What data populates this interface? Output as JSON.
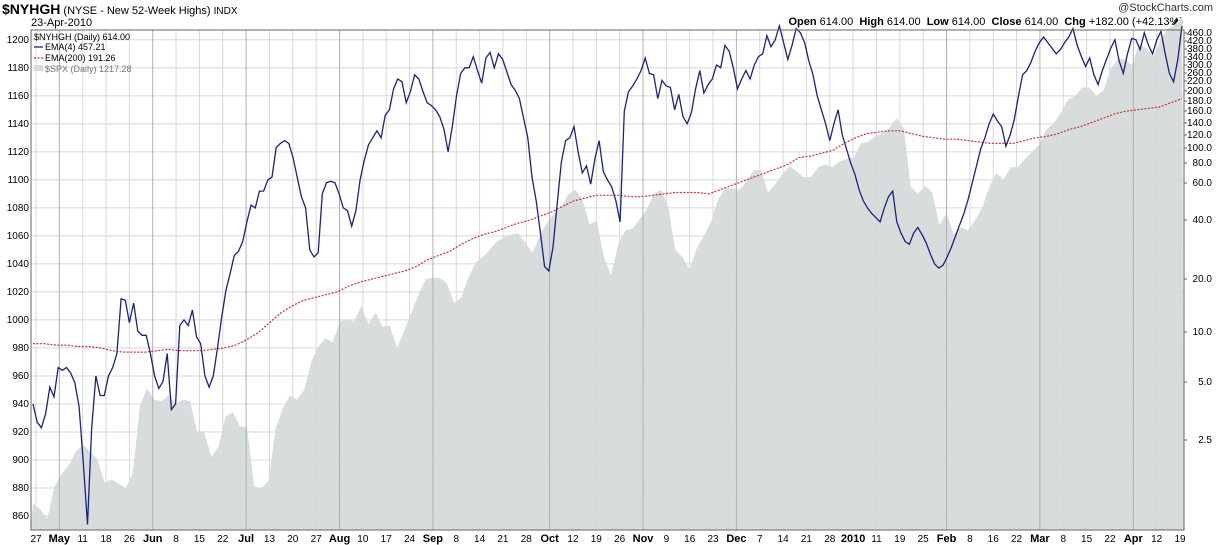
{
  "header": {
    "symbol": "$NYHGH",
    "description": "(NYSE - New 52-Week Highs)",
    "exchange": "INDX",
    "date": "23-Apr-2010",
    "watermark": "@StockCharts.com",
    "ohlc": {
      "open_label": "Open",
      "open": "614.00",
      "high_label": "High",
      "high": "614.00",
      "low_label": "Low",
      "low": "614.00",
      "close_label": "Close",
      "close": "614.00",
      "chg_label": "Chg",
      "chg": "+182.00 (+42.13%)"
    }
  },
  "legend": {
    "main": "$NYHGH (Daily) 614.00",
    "ema4": "EMA(4) 457.21",
    "ema200": "EMA(200) 191.26",
    "spx": "$SPX (Daily) 1217.28"
  },
  "colors": {
    "ema4": "#1a237e",
    "ema200": "#d32f2f",
    "spx_fill": "#d7dcdc",
    "grid": "#d8d8d8"
  },
  "chart_data": {
    "type": "line",
    "x_labels": [
      "27",
      "May",
      "11",
      "18",
      "26",
      "Jun",
      "8",
      "15",
      "22",
      "Jul",
      "13",
      "20",
      "27",
      "Aug",
      "10",
      "17",
      "24",
      "Sep",
      "8",
      "14",
      "21",
      "28",
      "Oct",
      "12",
      "19",
      "26",
      "Nov",
      "9",
      "16",
      "23",
      "Dec",
      "7",
      "14",
      "21",
      "28",
      "2010",
      "11",
      "19",
      "25",
      "Feb",
      "8",
      "16",
      "22",
      "Mar",
      "8",
      "15",
      "22",
      "Apr",
      "12",
      "19"
    ],
    "y_left_ticks": [
      860,
      880,
      900,
      920,
      940,
      960,
      980,
      1000,
      1020,
      1040,
      1060,
      1080,
      1100,
      1120,
      1140,
      1160,
      1180,
      1200
    ],
    "y_right_ticks": [
      "460.0",
      "420.0",
      "380.0",
      "340.0",
      "300.0",
      "260.0",
      "220.0",
      "200.0",
      "180.0",
      "160.0",
      "140.0",
      "120.0",
      "100.0",
      "80.0",
      "60.0",
      "40.0",
      "20.0",
      "10.0",
      "5.0",
      "2.5"
    ],
    "y_left_range": [
      850,
      1207
    ],
    "y_right_scale": "log",
    "series": [
      {
        "name": "$SPX (Daily) 1217.28",
        "kind": "area",
        "values": [
          869,
          865,
          858,
          881,
          890,
          896,
          906,
          911,
          906,
          901,
          884,
          886,
          883,
          880,
          891,
          939,
          951,
          943,
          942,
          946,
          940,
          943,
          942,
          920,
          920,
          902,
          910,
          931,
          934,
          924,
          923,
          881,
          880,
          885,
          922,
          937,
          946,
          943,
          950,
          970,
          981,
          987,
          984,
          999,
          1000,
          999,
          1010,
          997,
          1005,
          995,
          996,
          980,
          992,
          1005,
          1018,
          1029,
          1030,
          1030,
          1026,
          1012,
          1016,
          1030,
          1041,
          1045,
          1050,
          1056,
          1059,
          1061,
          1062,
          1055,
          1048,
          1060,
          1069,
          1076,
          1080,
          1090,
          1093,
          1086,
          1068,
          1071,
          1045,
          1032,
          1054,
          1064,
          1065,
          1072,
          1079,
          1090,
          1093,
          1081,
          1050,
          1045,
          1036,
          1051,
          1060,
          1070,
          1086,
          1094,
          1094,
          1093,
          1099,
          1107,
          1107,
          1091,
          1097,
          1104,
          1110,
          1106,
          1102,
          1102,
          1109,
          1111,
          1109,
          1113,
          1115,
          1116,
          1126,
          1127,
          1131,
          1133,
          1137,
          1144,
          1137,
          1095,
          1090,
          1096,
          1091,
          1068,
          1076,
          1061,
          1066,
          1064,
          1071,
          1080,
          1095,
          1105,
          1100,
          1109,
          1109,
          1115,
          1120,
          1125,
          1136,
          1140,
          1148,
          1157,
          1160,
          1166,
          1166,
          1160,
          1164,
          1179,
          1186,
          1186,
          1182,
          1197,
          1194,
          1188,
          1200,
          1208,
          1211,
          1217
        ]
      },
      {
        "name": "EMA(4) 457.21",
        "kind": "line",
        "values": [
          940,
          927,
          923,
          933,
          952,
          945,
          966,
          964,
          966,
          962,
          955,
          938,
          898,
          854,
          923,
          960,
          946,
          946,
          960,
          966,
          976,
          1015,
          1014,
          998,
          1012,
          992,
          989,
          989,
          976,
          960,
          951,
          956,
          976,
          936,
          940,
          996,
          1000,
          996,
          1007,
          988,
          983,
          960,
          952,
          960,
          980,
          1002,
          1021,
          1033,
          1046,
          1049,
          1056,
          1070,
          1082,
          1080,
          1092,
          1092,
          1100,
          1102,
          1123,
          1126,
          1128,
          1126,
          1116,
          1102,
          1088,
          1080,
          1050,
          1045,
          1048,
          1090,
          1098,
          1099,
          1098,
          1090,
          1080,
          1078,
          1067,
          1078,
          1100,
          1114,
          1125,
          1130,
          1135,
          1130,
          1146,
          1150,
          1165,
          1172,
          1170,
          1155,
          1163,
          1175,
          1172,
          1163,
          1155,
          1153,
          1150,
          1145,
          1136,
          1120,
          1138,
          1160,
          1176,
          1180,
          1180,
          1188,
          1178,
          1169,
          1187,
          1191,
          1180,
          1190,
          1186,
          1177,
          1168,
          1164,
          1158,
          1144,
          1130,
          1102,
          1085,
          1062,
          1038,
          1035,
          1052,
          1083,
          1113,
          1128,
          1130,
          1138,
          1120,
          1105,
          1110,
          1097,
          1115,
          1128,
          1106,
          1100,
          1095,
          1085,
          1070,
          1149,
          1163,
          1167,
          1172,
          1178,
          1187,
          1176,
          1175,
          1158,
          1171,
          1167,
          1166,
          1150,
          1161,
          1145,
          1140,
          1148,
          1165,
          1178,
          1162,
          1168,
          1172,
          1182,
          1180,
          1196,
          1192,
          1180,
          1165,
          1172,
          1178,
          1172,
          1182,
          1188,
          1190,
          1203,
          1195,
          1200,
          1210,
          1198,
          1186,
          1196,
          1208,
          1205,
          1198,
          1185,
          1175,
          1160,
          1150,
          1140,
          1128,
          1140,
          1150,
          1132,
          1122,
          1112,
          1104,
          1093,
          1085,
          1080,
          1076,
          1073,
          1070,
          1080,
          1088,
          1092,
          1070,
          1062,
          1056,
          1054,
          1062,
          1066,
          1061,
          1055,
          1047,
          1040,
          1037,
          1039,
          1045,
          1052,
          1060,
          1068,
          1076,
          1086,
          1098,
          1110,
          1122,
          1130,
          1140,
          1147,
          1142,
          1138,
          1124,
          1132,
          1143,
          1160,
          1175,
          1178,
          1184,
          1192,
          1198,
          1202,
          1198,
          1194,
          1190,
          1193,
          1198,
          1202,
          1208,
          1196,
          1188,
          1181,
          1187,
          1175,
          1168,
          1178,
          1186,
          1194,
          1200,
          1185,
          1176,
          1190,
          1201,
          1200,
          1193,
          1205,
          1196,
          1190,
          1200,
          1206,
          1190,
          1176,
          1170,
          1186,
          1210
        ]
      },
      {
        "name": "EMA(200) 191.26",
        "kind": "line",
        "values": [
          983,
          983,
          982,
          982,
          981,
          981,
          980,
          978,
          977,
          977,
          977,
          978,
          979,
          978,
          978,
          978,
          979,
          980,
          982,
          986,
          991,
          998,
          1005,
          1010,
          1014,
          1016,
          1018,
          1020,
          1024,
          1027,
          1029,
          1031,
          1033,
          1035,
          1038,
          1043,
          1046,
          1049,
          1054,
          1058,
          1061,
          1063,
          1066,
          1069,
          1071,
          1074,
          1077,
          1081,
          1085,
          1087,
          1089,
          1089,
          1089,
          1088,
          1088,
          1089,
          1090,
          1091,
          1091,
          1091,
          1090,
          1093,
          1096,
          1099,
          1102,
          1105,
          1108,
          1111,
          1116,
          1117,
          1119,
          1121,
          1126,
          1130,
          1133,
          1134,
          1135,
          1135,
          1133,
          1131,
          1130,
          1129,
          1129,
          1128,
          1127,
          1126,
          1126,
          1126,
          1128,
          1130,
          1131,
          1133,
          1136,
          1138,
          1141,
          1144,
          1147,
          1149,
          1150,
          1151,
          1152,
          1155,
          1158
        ]
      }
    ]
  }
}
